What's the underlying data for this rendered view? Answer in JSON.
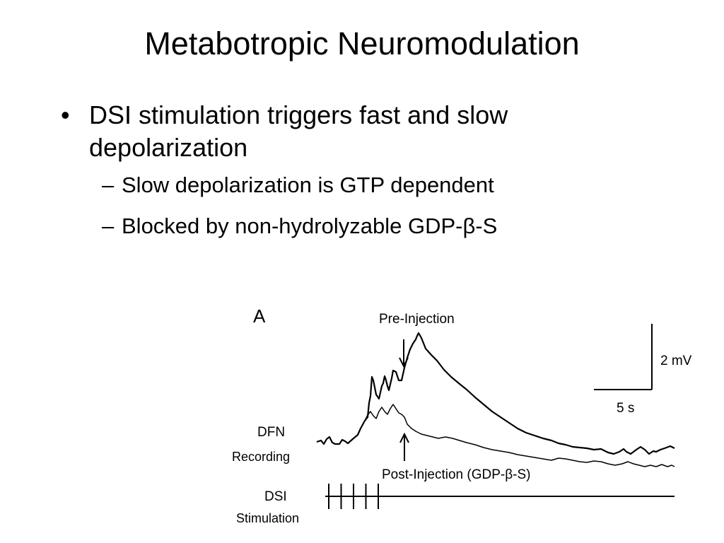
{
  "slide": {
    "title": "Metabotropic Neuromodulation",
    "bullet": {
      "marker": "•",
      "text": "DSI stimulation triggers fast and slow depolarization"
    },
    "sub_bullets": [
      {
        "marker": "–",
        "text": "Slow depolarization is GTP dependent"
      },
      {
        "marker": "–",
        "text": "Blocked by non-hydrolyzable GDP-β-S"
      }
    ]
  },
  "figure": {
    "panel_label": "A",
    "pre_injection_label": "Pre-Injection",
    "post_injection_label": "Post-Injection (GDP-β-S)",
    "scale_voltage_label": "2 mV",
    "scale_time_label": "5 s",
    "dfn_label": "DFN",
    "recording_label": "Recording",
    "dsi_label": "DSI",
    "stimulation_label": "Stimulation",
    "stimulus_pulse_count": 5
  }
}
